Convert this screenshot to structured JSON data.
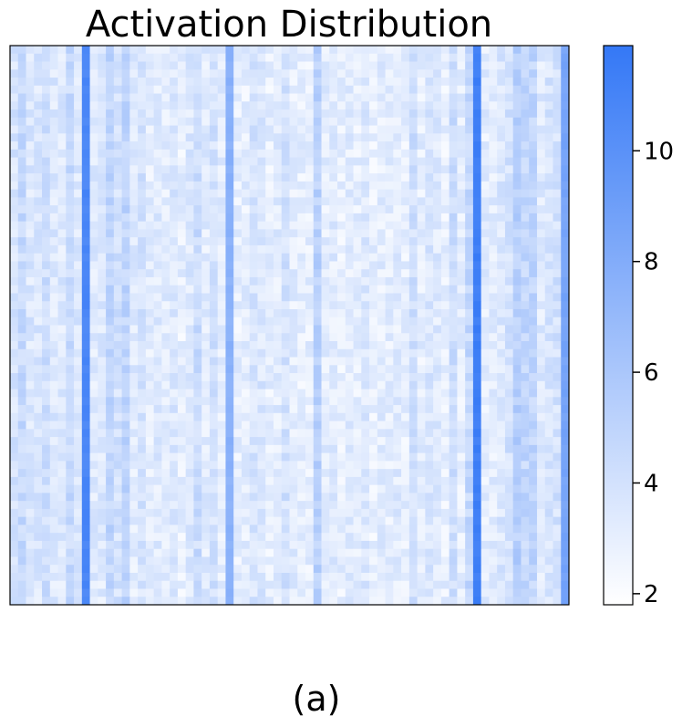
{
  "chart_data": {
    "type": "heatmap",
    "title": "Activation Distribution",
    "xlabel": "",
    "ylabel": "",
    "grid": false,
    "rows": 70,
    "cols": 70,
    "colorbar": {
      "min": 1.8,
      "max": 11.9,
      "ticks": [
        2,
        4,
        6,
        8,
        10
      ],
      "low_color": "#ffffff",
      "high_color": "#3478f6"
    },
    "column_means": [
      3.8,
      4.6,
      3.6,
      3.6,
      4.2,
      3.5,
      3.5,
      4.6,
      3.6,
      10.8,
      3.4,
      3.4,
      4.9,
      4.0,
      5.0,
      3.3,
      3.9,
      3.2,
      3.4,
      3.3,
      3.6,
      3.0,
      3.5,
      4.4,
      3.3,
      4.0,
      3.2,
      7.6,
      3.0,
      3.1,
      3.8,
      3.6,
      3.0,
      3.3,
      4.0,
      3.2,
      3.0,
      3.1,
      5.3,
      3.2,
      3.3,
      3.0,
      3.2,
      3.1,
      3.5,
      3.0,
      3.2,
      3.1,
      3.3,
      3.0,
      4.2,
      3.1,
      3.6,
      3.4,
      3.0,
      4.3,
      3.1,
      4.7,
      11.4,
      3.2,
      3.2,
      3.6,
      4.0,
      5.4,
      4.8,
      4.9,
      3.4,
      3.8,
      4.0,
      8.6
    ],
    "caption": "(a)"
  }
}
